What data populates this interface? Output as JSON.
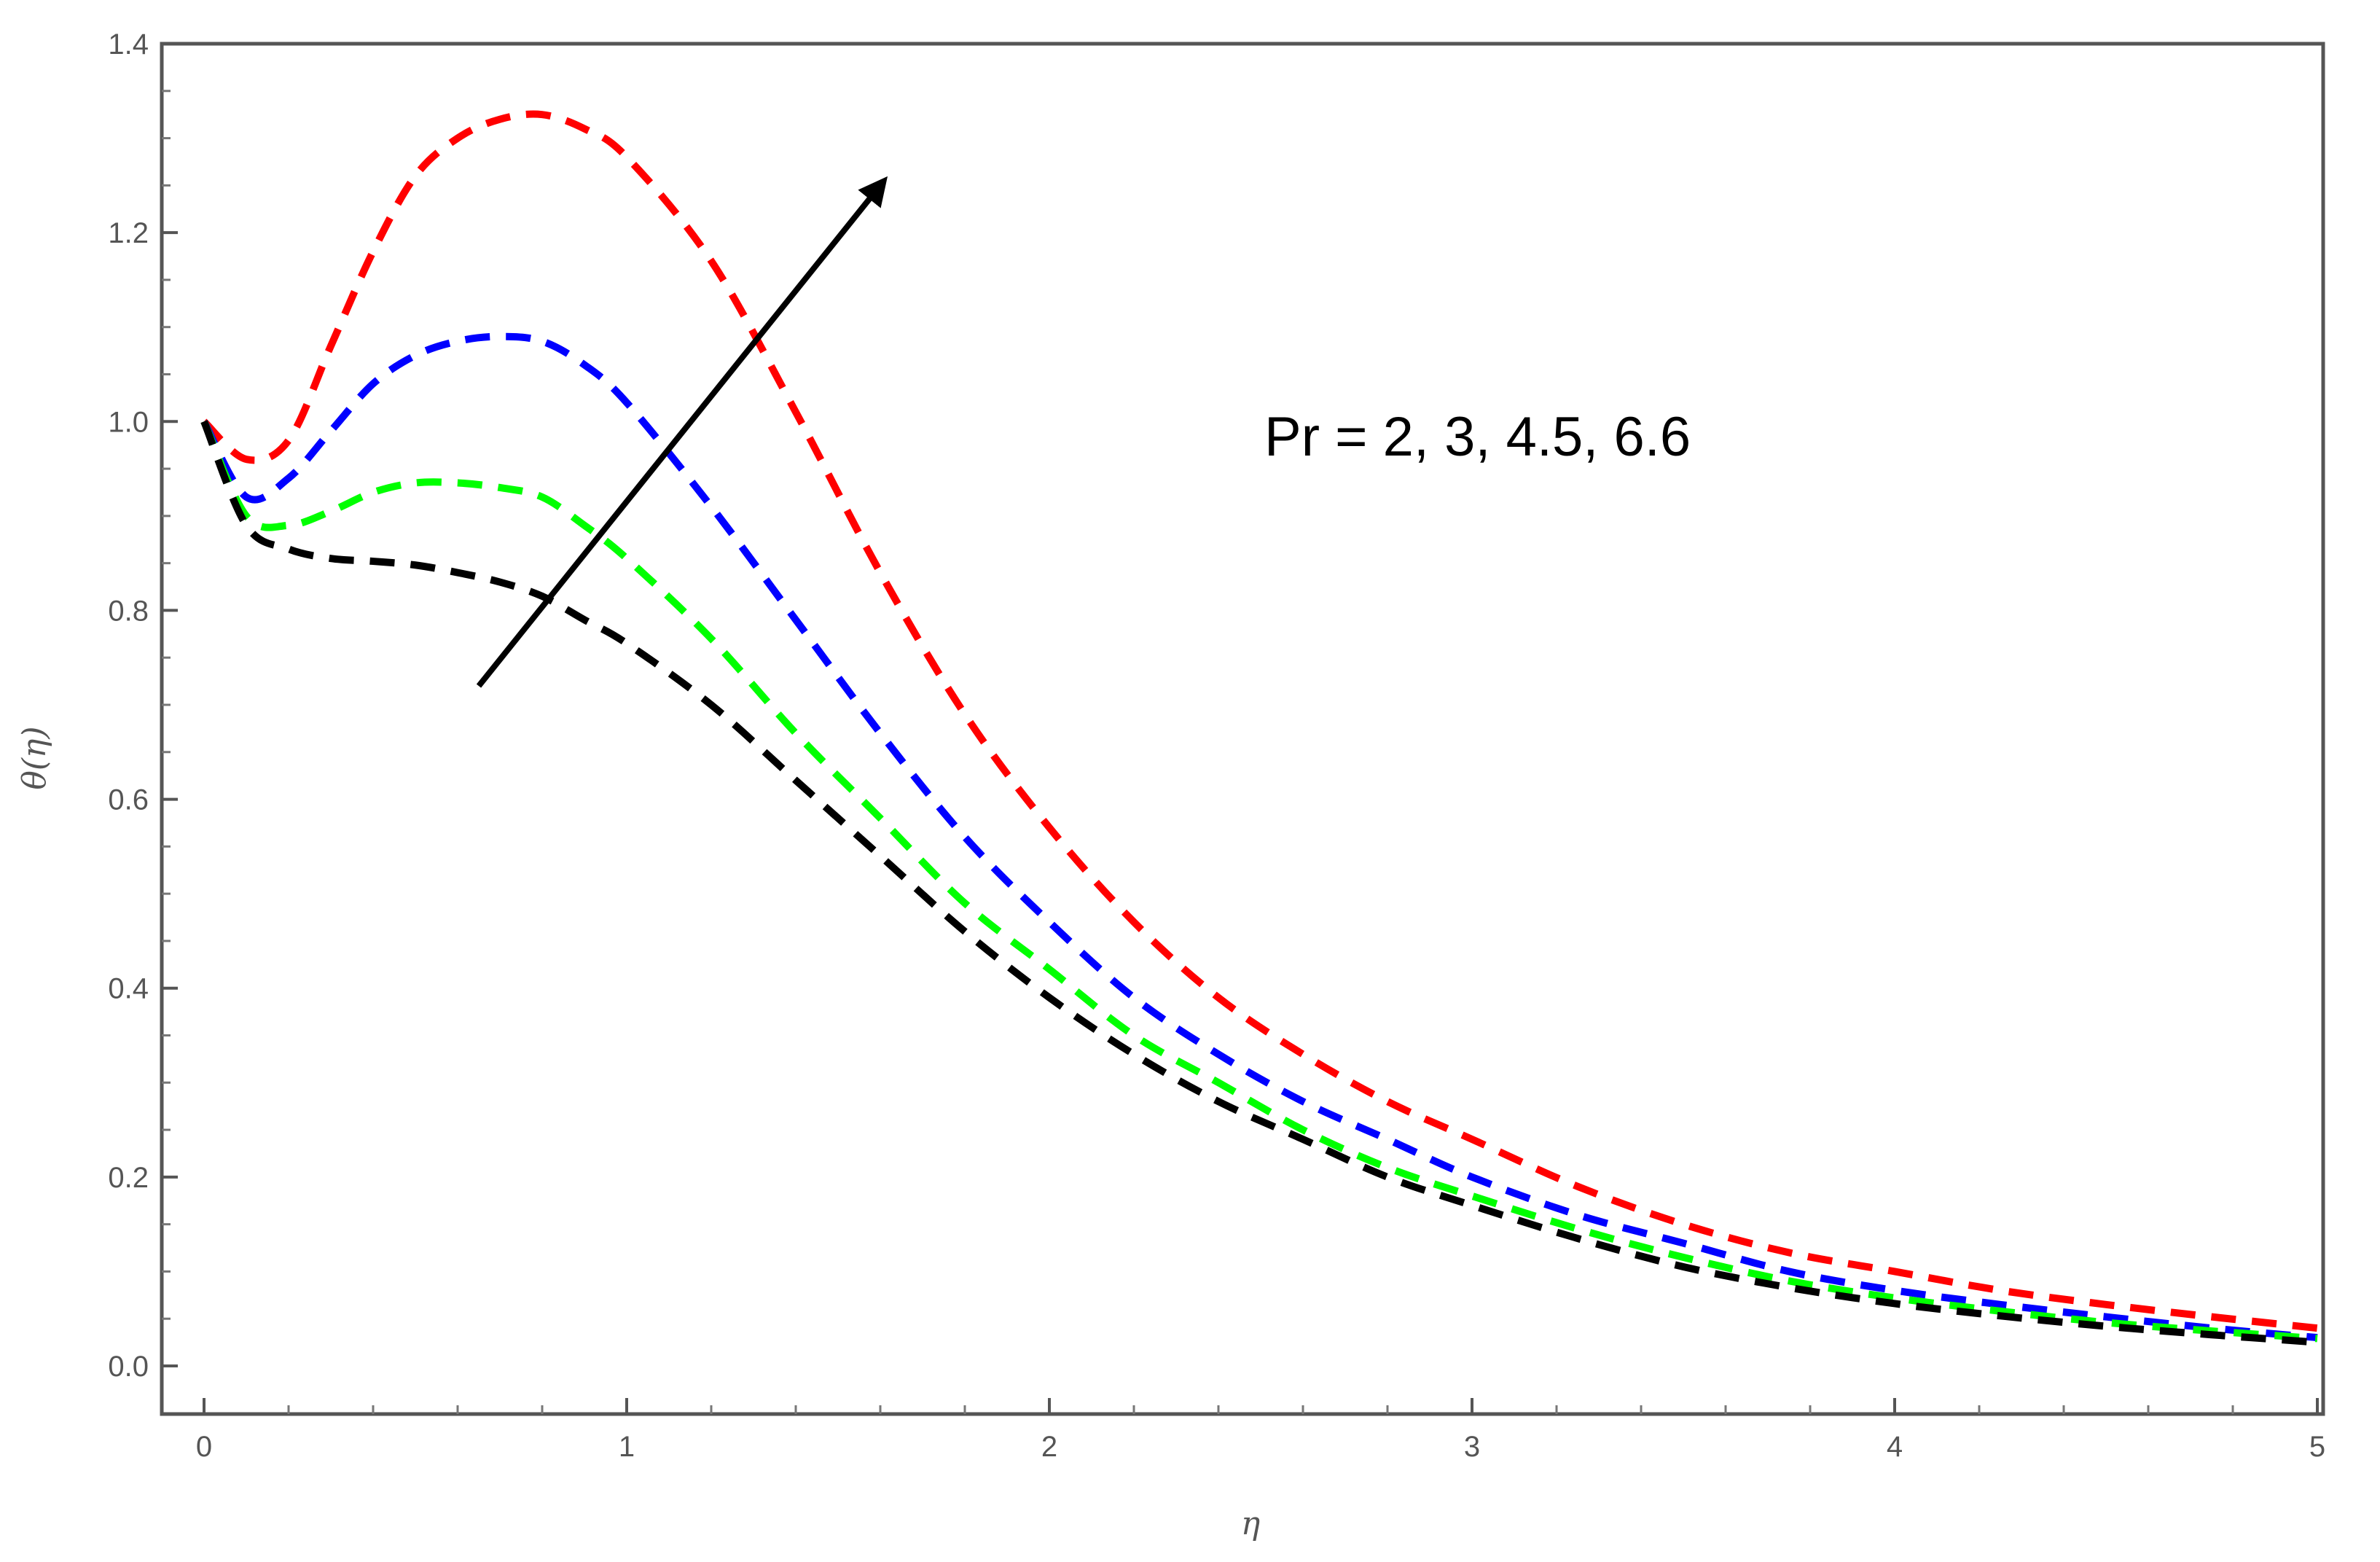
{
  "chart_data": {
    "type": "line",
    "xlabel": "η",
    "ylabel": "θ(η)",
    "xlim": [
      0,
      5
    ],
    "ylim": [
      0,
      1.4
    ],
    "x_ticks": [
      "0",
      "1",
      "2",
      "3",
      "4",
      "5"
    ],
    "y_ticks": [
      "0.0",
      "0.2",
      "0.4",
      "0.6",
      "0.8",
      "1.0",
      "1.2",
      "1.4"
    ],
    "grid": false,
    "line_style": "dashed",
    "annotation": "Pr = 2, 3, 4.5, 6.6",
    "arrow": {
      "from": [
        0.65,
        0.72
      ],
      "to": [
        1.6,
        1.25
      ]
    },
    "series": [
      {
        "color": "#ff0000",
        "x": [
          0,
          0.1,
          0.2,
          0.3,
          0.4,
          0.5,
          0.6,
          0.7,
          0.8,
          0.9,
          1.0,
          1.2,
          1.4,
          1.6,
          1.8,
          2.0,
          2.2,
          2.4,
          2.6,
          2.8,
          3.0,
          3.25,
          3.5,
          3.75,
          4.0,
          4.25,
          4.5,
          4.75,
          5.0
        ],
        "y": [
          1.0,
          0.96,
          0.98,
          1.08,
          1.18,
          1.26,
          1.3,
          1.32,
          1.325,
          1.31,
          1.28,
          1.17,
          1.01,
          0.84,
          0.69,
          0.57,
          0.47,
          0.39,
          0.33,
          0.28,
          0.24,
          0.19,
          0.15,
          0.12,
          0.1,
          0.08,
          0.065,
          0.052,
          0.04
        ]
      },
      {
        "color": "#0000ff",
        "x": [
          0,
          0.1,
          0.2,
          0.3,
          0.4,
          0.5,
          0.6,
          0.7,
          0.8,
          0.9,
          1.0,
          1.2,
          1.4,
          1.6,
          1.8,
          2.0,
          2.2,
          2.4,
          2.6,
          2.8,
          3.0,
          3.25,
          3.5,
          3.75,
          4.0,
          4.25,
          4.5,
          4.75,
          5.0
        ],
        "y": [
          1.0,
          0.92,
          0.94,
          0.99,
          1.04,
          1.07,
          1.085,
          1.09,
          1.085,
          1.06,
          1.02,
          0.91,
          0.79,
          0.67,
          0.56,
          0.47,
          0.39,
          0.33,
          0.28,
          0.24,
          0.2,
          0.16,
          0.13,
          0.1,
          0.08,
          0.065,
          0.052,
          0.04,
          0.03
        ]
      },
      {
        "color": "#00ff00",
        "x": [
          0,
          0.1,
          0.2,
          0.3,
          0.4,
          0.5,
          0.6,
          0.7,
          0.8,
          0.9,
          1.0,
          1.2,
          1.4,
          1.6,
          1.8,
          2.0,
          2.2,
          2.4,
          2.6,
          2.8,
          3.0,
          3.25,
          3.5,
          3.75,
          4.0,
          4.25,
          4.5,
          4.75,
          5.0
        ],
        "y": [
          1.0,
          0.9,
          0.89,
          0.905,
          0.925,
          0.935,
          0.935,
          0.93,
          0.92,
          0.89,
          0.855,
          0.77,
          0.67,
          0.58,
          0.49,
          0.42,
          0.35,
          0.3,
          0.25,
          0.21,
          0.18,
          0.145,
          0.115,
          0.09,
          0.072,
          0.058,
          0.046,
          0.037,
          0.029
        ]
      },
      {
        "color": "#000000",
        "x": [
          0,
          0.1,
          0.2,
          0.3,
          0.4,
          0.5,
          0.6,
          0.7,
          0.8,
          0.9,
          1.0,
          1.2,
          1.4,
          1.6,
          1.8,
          2.0,
          2.2,
          2.4,
          2.6,
          2.8,
          3.0,
          3.25,
          3.5,
          3.75,
          4.0,
          4.25,
          4.5,
          4.75,
          5.0
        ],
        "y": [
          1.0,
          0.89,
          0.865,
          0.855,
          0.852,
          0.848,
          0.84,
          0.83,
          0.815,
          0.79,
          0.765,
          0.7,
          0.62,
          0.54,
          0.46,
          0.39,
          0.33,
          0.28,
          0.24,
          0.2,
          0.17,
          0.135,
          0.105,
          0.083,
          0.066,
          0.053,
          0.042,
          0.033,
          0.025
        ]
      }
    ]
  }
}
